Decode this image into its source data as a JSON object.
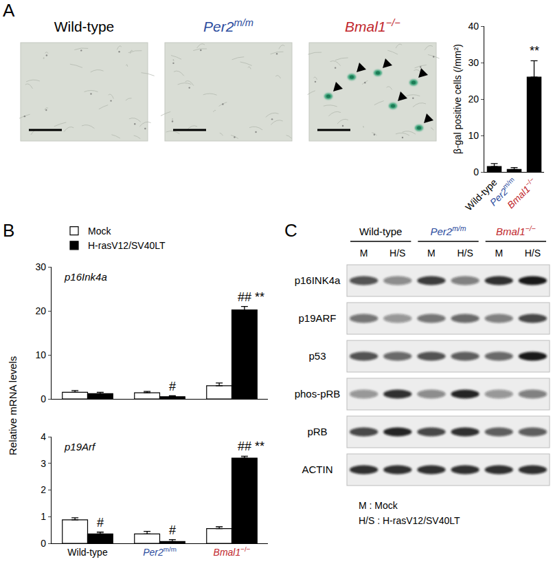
{
  "panel_labels": [
    "A",
    "B",
    "C"
  ],
  "genotypes": [
    {
      "name": "Wild-type",
      "gene": "Wild-type",
      "italic": false,
      "color": "#000000"
    },
    {
      "name": "Per2m/m",
      "gene": "Per2",
      "allele": "m/m",
      "italic": true,
      "color": "#2b4c9e"
    },
    {
      "name": "Bmal1−/−",
      "gene": "Bmal1",
      "allele": "−/−",
      "italic": true,
      "color": "#c1272d"
    }
  ],
  "micrographs": [
    {
      "genotype": "Wild-type",
      "arrowheads": 0
    },
    {
      "genotype": "Per2m/m",
      "arrowheads": 0
    },
    {
      "genotype": "Bmal1−/−",
      "arrowheads": 6
    }
  ],
  "chart_data": [
    {
      "type": "bar",
      "categories": [
        "Wild-type",
        "Per2m/m",
        "Bmal1−/−"
      ],
      "values": [
        1.5,
        0.7,
        26
      ],
      "errors": [
        0.8,
        0.5,
        4.5
      ],
      "color": "#000000",
      "y_label": "β-gal positive cells (/mm²)",
      "ylim": [
        0,
        40
      ],
      "yticks": [
        0,
        10,
        20,
        30,
        40
      ],
      "annotations": [
        {
          "category": "Bmal1−/−",
          "text": "**"
        }
      ]
    },
    {
      "type": "bar",
      "title": "p16Ink4a",
      "y_label": "Relative mRNA levels",
      "categories": [
        "Wild-type",
        "Per2m/m",
        "Bmal1−/−"
      ],
      "series": [
        {
          "name": "Mock",
          "color": "#ffffff",
          "values": [
            1.5,
            1.4,
            3.0
          ],
          "errors": [
            0.4,
            0.3,
            0.6
          ]
        },
        {
          "name": "H-rasV12/SV40LT",
          "color": "#000000",
          "values": [
            1.2,
            0.5,
            20.2
          ],
          "errors": [
            0.3,
            0.2,
            0.8
          ]
        }
      ],
      "ylim": [
        0,
        30
      ],
      "yticks": [
        0,
        10,
        20,
        30
      ],
      "legend": "top left",
      "tick_labels": "y",
      "annotations": [
        {
          "category": "Per2m/m",
          "series": "H-rasV12/SV40LT",
          "text": "#"
        },
        {
          "category": "Bmal1−/−",
          "series": "H-rasV12/SV40LT",
          "text": "## **"
        }
      ]
    },
    {
      "type": "bar",
      "title": "p19Arf",
      "categories": [
        "Wild-type",
        "Per2m/m",
        "Bmal1−/−"
      ],
      "series": [
        {
          "name": "Mock",
          "color": "#ffffff",
          "values": [
            0.88,
            0.35,
            0.55
          ],
          "errors": [
            0.08,
            0.1,
            0.07
          ]
        },
        {
          "name": "H-rasV12/SV40LT",
          "color": "#000000",
          "values": [
            0.35,
            0.07,
            3.2
          ],
          "errors": [
            0.07,
            0.07,
            0.07
          ]
        }
      ],
      "ylim": [
        0,
        4
      ],
      "yticks": [
        0,
        1,
        2,
        3,
        4
      ],
      "annotations": [
        {
          "category": "Wild-type",
          "series": "H-rasV12/SV40LT",
          "text": "#"
        },
        {
          "category": "Per2m/m",
          "series": "H-rasV12/SV40LT",
          "text": "#"
        },
        {
          "category": "Bmal1−/−",
          "series": "H-rasV12/SV40LT",
          "text": "## **"
        }
      ]
    }
  ],
  "western_blot": {
    "lane_groups": [
      "Wild-type",
      "Per2m/m",
      "Bmal1−/−"
    ],
    "lanes": [
      "M",
      "H/S",
      "M",
      "H/S",
      "M",
      "H/S"
    ],
    "rows": [
      {
        "label": "p16INK4a",
        "band_intensity": [
          0.7,
          0.45,
          0.8,
          0.5,
          0.85,
          0.95
        ]
      },
      {
        "label": "p19ARF",
        "band_intensity": [
          0.55,
          0.4,
          0.55,
          0.6,
          0.5,
          0.75
        ]
      },
      {
        "label": "p53",
        "band_intensity": [
          0.7,
          0.6,
          0.7,
          0.65,
          0.6,
          0.95
        ]
      },
      {
        "label": "phos-pRB",
        "band_intensity": [
          0.4,
          0.85,
          0.45,
          0.9,
          0.4,
          0.5
        ]
      },
      {
        "label": "pRB",
        "band_intensity": [
          0.75,
          0.9,
          0.75,
          0.85,
          0.65,
          0.65
        ]
      },
      {
        "label": "ACTIN",
        "band_intensity": [
          0.85,
          0.85,
          0.85,
          0.85,
          0.85,
          0.85
        ]
      }
    ],
    "notes": [
      "M : Mock",
      "H/S : H-rasV12/SV40LT"
    ]
  }
}
